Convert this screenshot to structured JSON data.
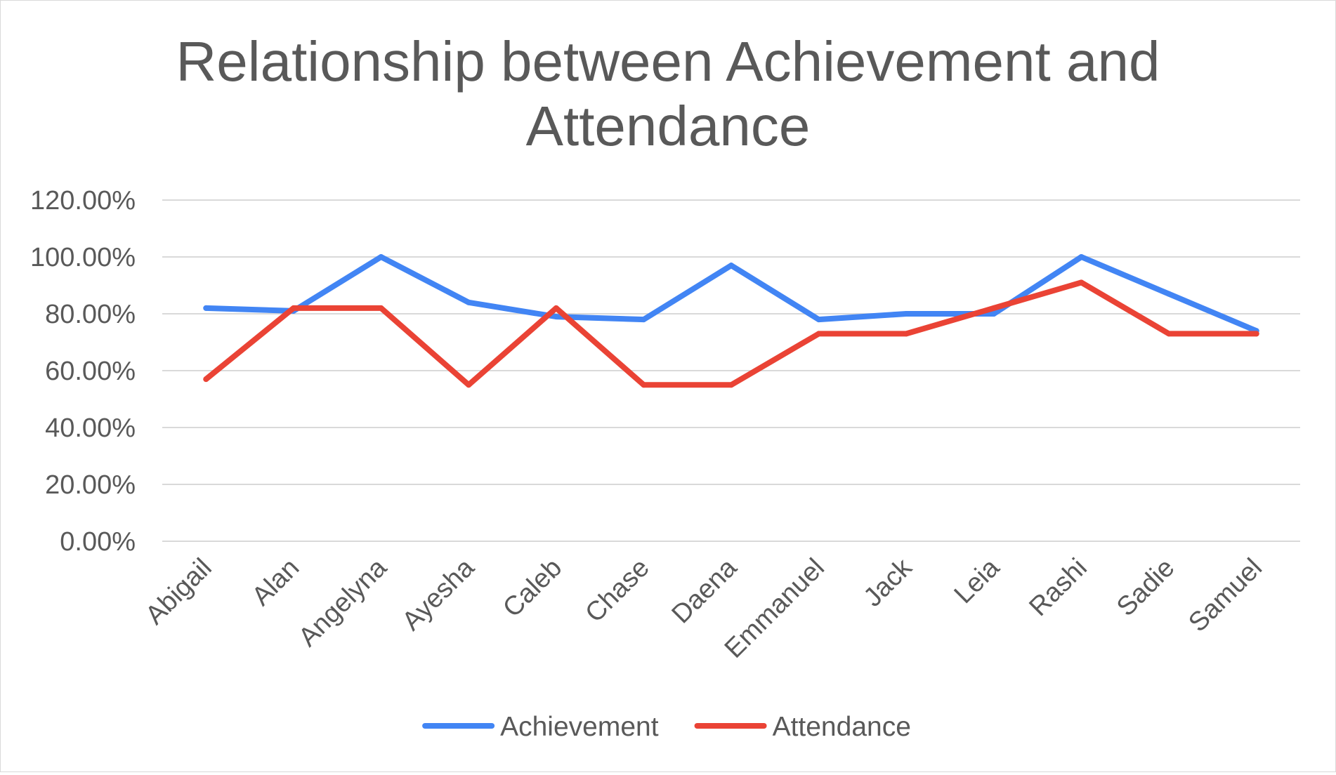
{
  "chart_data": {
    "type": "line",
    "title_lines": [
      "Relationship between Achievement and",
      "Attendance"
    ],
    "categories": [
      "Abigail",
      "Alan",
      "Angelyna",
      "Ayesha",
      "Caleb",
      "Chase",
      "Daena",
      "Emmanuel",
      "Jack",
      "Leia",
      "Rashi",
      "Sadie",
      "Samuel"
    ],
    "yticks": [
      "0.00%",
      "20.00%",
      "40.00%",
      "60.00%",
      "80.00%",
      "100.00%",
      "120.00%"
    ],
    "ylim": [
      0,
      120
    ],
    "grid": true,
    "legend_position": "bottom",
    "series": [
      {
        "name": "Achievement",
        "color": "#4285f4",
        "values": [
          82,
          81,
          100,
          84,
          79,
          78,
          97,
          78,
          80,
          80,
          100,
          87,
          74
        ]
      },
      {
        "name": "Attendance",
        "color": "#ea4335",
        "values": [
          57,
          82,
          82,
          55,
          82,
          55,
          55,
          73,
          73,
          82,
          91,
          73,
          73
        ]
      }
    ]
  }
}
